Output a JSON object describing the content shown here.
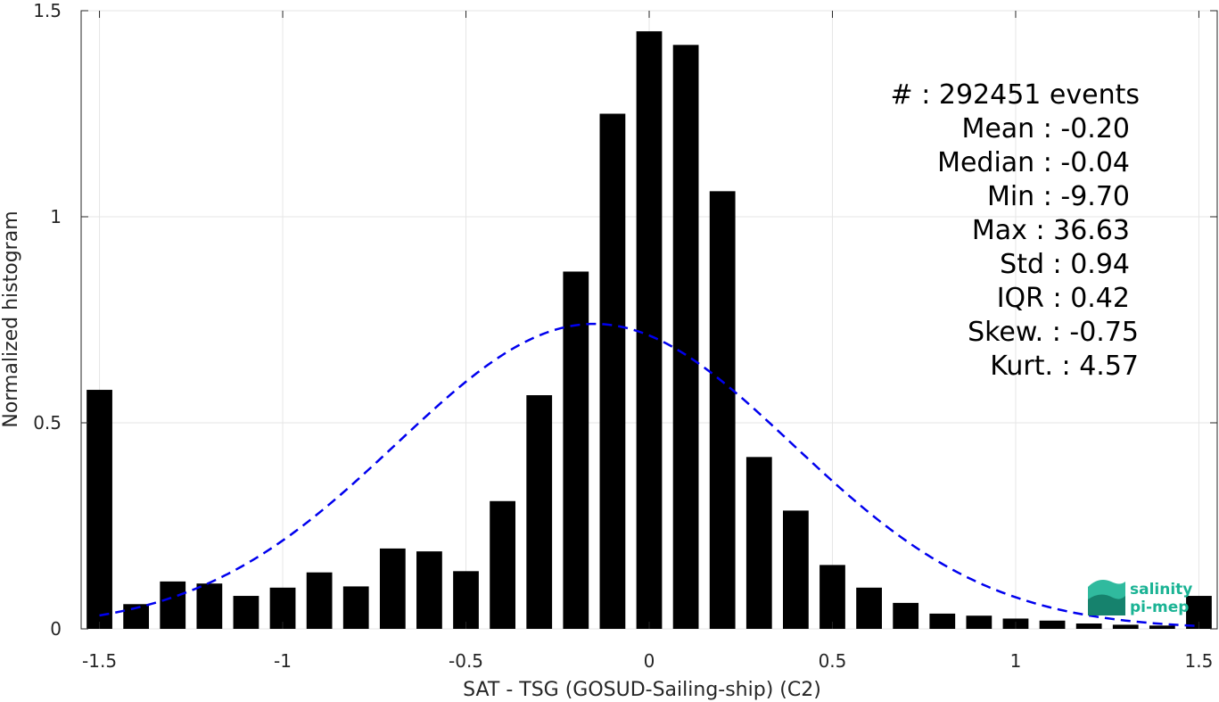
{
  "chart_data": {
    "type": "bar",
    "xlabel": "SAT - TSG (GOSUD-Sailing-ship) (C2)",
    "ylabel": "Normalized histogram",
    "xlim": [
      -1.55,
      1.55
    ],
    "ylim": [
      0,
      1.5
    ],
    "xticks": [
      -1.5,
      -1,
      -0.5,
      0,
      0.5,
      1,
      1.5
    ],
    "xtick_labels": [
      "-1.5",
      "-1",
      "-0.5",
      "0",
      "0.5",
      "1",
      "1.5"
    ],
    "yticks": [
      0,
      0.5,
      1,
      1.5
    ],
    "ytick_labels": [
      "0",
      "0.5",
      "1",
      "1.5"
    ],
    "grid": true,
    "bar_color": "#000000",
    "bar_width": 0.07,
    "x": [
      -1.5,
      -1.4,
      -1.3,
      -1.2,
      -1.1,
      -1.0,
      -0.9,
      -0.8,
      -0.7,
      -0.6,
      -0.5,
      -0.4,
      -0.3,
      -0.2,
      -0.1,
      0.0,
      0.1,
      0.2,
      0.3,
      0.4,
      0.5,
      0.6,
      0.7,
      0.8,
      0.9,
      1.0,
      1.1,
      1.2,
      1.3,
      1.4,
      1.5
    ],
    "values": [
      0.58,
      0.06,
      0.115,
      0.11,
      0.08,
      0.1,
      0.137,
      0.103,
      0.195,
      0.188,
      0.14,
      0.31,
      0.567,
      0.867,
      1.25,
      1.45,
      1.417,
      1.062,
      0.417,
      0.287,
      0.155,
      0.1,
      0.063,
      0.037,
      0.032,
      0.025,
      0.02,
      0.013,
      0.01,
      0.008,
      0.08
    ],
    "fit_curve": {
      "style": "dashed",
      "color": "#0000ee",
      "mean": -0.15,
      "std": 0.54,
      "peak": 0.74
    },
    "stats_lines": [
      "#  : 292451 events",
      "Mean : -0.20",
      "Median : -0.04",
      "Min : -9.70",
      "Max : 36.63",
      "Std : 0.94",
      "IQR : 0.42",
      "Skew. : -0.75",
      "Kurt. : 4.57"
    ]
  },
  "logo": {
    "line1": "salinity",
    "line2": "pi-mep",
    "color": "#1ab394"
  }
}
